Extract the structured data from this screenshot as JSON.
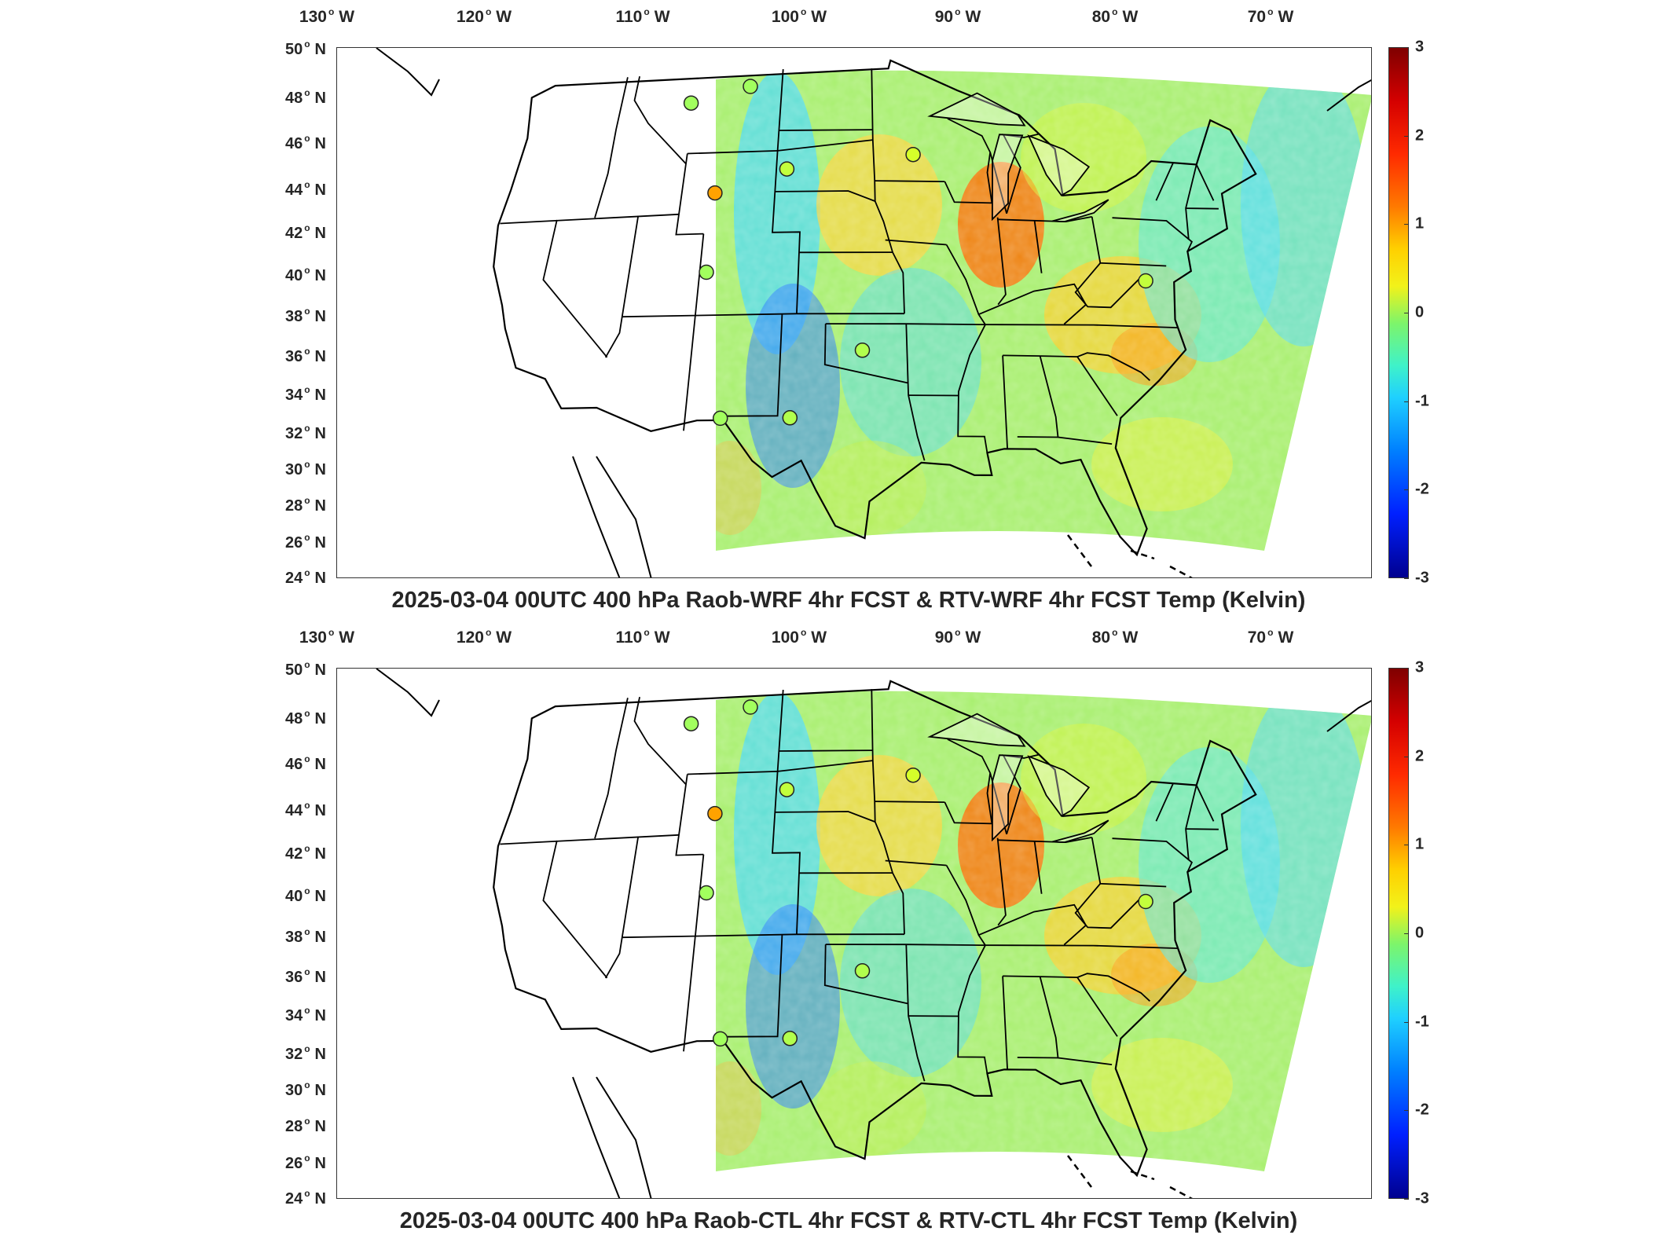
{
  "panels": [
    {
      "title": "2025-03-04 00UTC 400 hPa Raob-WRF 4hr FCST & RTV-WRF 4hr FCST Temp (Kelvin)"
    },
    {
      "title": "2025-03-04 00UTC 400 hPa Raob-CTL 4hr FCST & RTV-CTL 4hr FCST Temp (Kelvin)"
    }
  ],
  "map": {
    "lon_labels": [
      {
        "value": "130",
        "hemi": "W"
      },
      {
        "value": "120",
        "hemi": "W"
      },
      {
        "value": "110",
        "hemi": "W"
      },
      {
        "value": "100",
        "hemi": "W"
      },
      {
        "value": "90",
        "hemi": "W"
      },
      {
        "value": "80",
        "hemi": "W"
      },
      {
        "value": "70",
        "hemi": "W"
      }
    ],
    "lat_labels": [
      {
        "value": "50",
        "hemi": "N"
      },
      {
        "value": "48",
        "hemi": "N"
      },
      {
        "value": "46",
        "hemi": "N"
      },
      {
        "value": "44",
        "hemi": "N"
      },
      {
        "value": "42",
        "hemi": "N"
      },
      {
        "value": "40",
        "hemi": "N"
      },
      {
        "value": "38",
        "hemi": "N"
      },
      {
        "value": "36",
        "hemi": "N"
      },
      {
        "value": "34",
        "hemi": "N"
      },
      {
        "value": "32",
        "hemi": "N"
      },
      {
        "value": "30",
        "hemi": "N"
      },
      {
        "value": "28",
        "hemi": "N"
      },
      {
        "value": "26",
        "hemi": "N"
      },
      {
        "value": "24",
        "hemi": "N"
      }
    ]
  },
  "colorbar": {
    "ticks": [
      "3",
      "2",
      "1",
      "0",
      "-1",
      "-2",
      "-3"
    ],
    "range": [
      -3,
      3
    ],
    "colormap": "jet"
  },
  "raob_stations": [
    {
      "lon": -111.3,
      "lat": 47.5,
      "value": 0.2
    },
    {
      "lon": -106.6,
      "lat": 48.2,
      "value": 0.2
    },
    {
      "lon": -103.2,
      "lat": 44.1,
      "value": 0.4
    },
    {
      "lon": -93.5,
      "lat": 44.8,
      "value": 0.5
    },
    {
      "lon": -108.5,
      "lat": 43.0,
      "value": 1.3
    },
    {
      "lon": -108.5,
      "lat": 39.1,
      "value": 0.2
    },
    {
      "lon": -97.5,
      "lat": 35.2,
      "value": 0.3
    },
    {
      "lon": -106.7,
      "lat": 31.9,
      "value": 0.2
    },
    {
      "lon": -102.2,
      "lat": 31.9,
      "value": 0.3
    },
    {
      "lon": -77.5,
      "lat": 38.9,
      "value": 0.4
    }
  ],
  "colors": {
    "field_base": "#9ef07a",
    "station_outline": "#222222",
    "border": "#000000"
  }
}
